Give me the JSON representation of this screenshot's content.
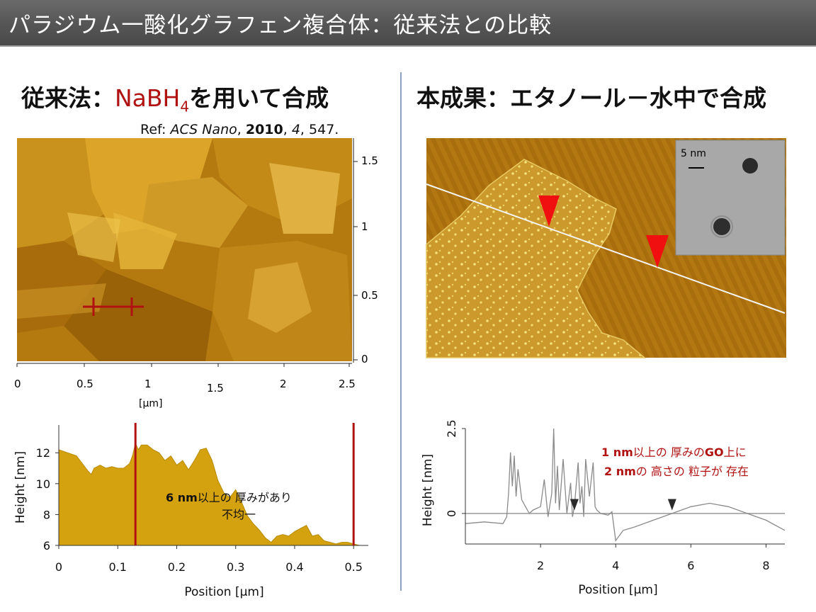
{
  "title": "パラジウム一酸化グラフェン複合体：従来法との比較",
  "left": {
    "heading_prefix": "従来法：",
    "heading_reagent_main": "NaBH",
    "heading_reagent_sub": "4",
    "heading_suffix": "を用いて合成",
    "ref": {
      "prefix": "Ref: ",
      "journal": "ACS Nano",
      "year": "2010",
      "volume": "4",
      "pages": "547."
    },
    "afm": {
      "x_ticks": [
        "0",
        "0.5",
        "1",
        "1.5",
        "2",
        "2.5"
      ],
      "x_unit": "[μm]",
      "y_ticks": [
        "0",
        "0.5",
        "1",
        "1.5"
      ]
    },
    "chart_data": {
      "type": "area",
      "xlabel": "Position [μm]",
      "ylabel": "Height [nm]",
      "xlim": [
        0,
        0.525
      ],
      "ylim": [
        6,
        13.8
      ],
      "x_ticks": [
        "0",
        "0.1",
        "0.2",
        "0.3",
        "0.4",
        "0.5"
      ],
      "y_ticks": [
        "6",
        "8",
        "10",
        "12"
      ],
      "x": [
        0,
        0.015,
        0.03,
        0.04,
        0.05,
        0.055,
        0.06,
        0.07,
        0.08,
        0.09,
        0.1,
        0.11,
        0.12,
        0.125,
        0.13,
        0.135,
        0.14,
        0.15,
        0.16,
        0.17,
        0.18,
        0.19,
        0.2,
        0.21,
        0.215,
        0.22,
        0.23,
        0.24,
        0.25,
        0.26,
        0.27,
        0.28,
        0.29,
        0.3,
        0.31,
        0.32,
        0.33,
        0.34,
        0.35,
        0.36,
        0.37,
        0.38,
        0.39,
        0.4,
        0.41,
        0.42,
        0.43,
        0.44,
        0.45,
        0.46,
        0.47,
        0.48,
        0.49,
        0.5,
        0.51,
        0.52
      ],
      "values": [
        12.2,
        12.0,
        11.8,
        11.3,
        10.8,
        10.6,
        11.0,
        11.2,
        11.0,
        11.1,
        11.0,
        11.0,
        11.3,
        11.8,
        12.6,
        12.2,
        12.5,
        12.5,
        12.2,
        12.0,
        11.5,
        11.8,
        11.2,
        11.5,
        11.2,
        10.9,
        11.5,
        12.2,
        12.3,
        11.5,
        10.2,
        9.4,
        9.1,
        9.6,
        8.8,
        7.9,
        7.4,
        7.0,
        6.5,
        6.2,
        6.6,
        6.7,
        6.6,
        6.9,
        7.1,
        7.3,
        6.6,
        6.7,
        6.3,
        6.2,
        6.1,
        6.2,
        6.2,
        6.1,
        6.0,
        6.0
      ],
      "markers_x": [
        0.13,
        0.5
      ],
      "annotation_bold": "6 nm",
      "annotation_line1": "以上の 厚みがあり",
      "annotation_line2": "不均一",
      "fill_color": "#d4a20e",
      "marker_color": "#b01212"
    }
  },
  "right": {
    "heading": "本成果：エタノール－水中で合成",
    "inset_scale": "5 nm",
    "chart_data": {
      "type": "line",
      "xlabel": "Position [μm]",
      "ylabel": "Height [nm]",
      "xlim": [
        0,
        8.5
      ],
      "ylim": [
        -0.9,
        2.5
      ],
      "x_ticks": [
        "2",
        "4",
        "6",
        "8"
      ],
      "y_ticks": [
        "0",
        "2.5"
      ],
      "x": [
        0,
        0.5,
        1.0,
        1.1,
        1.15,
        1.2,
        1.25,
        1.3,
        1.35,
        1.4,
        1.5,
        1.6,
        1.7,
        1.8,
        2.0,
        2.1,
        2.2,
        2.3,
        2.35,
        2.4,
        2.45,
        2.5,
        2.6,
        2.7,
        2.8,
        2.85,
        2.9,
        3.0,
        3.05,
        3.1,
        3.15,
        3.2,
        3.3,
        3.4,
        3.45,
        3.5,
        3.6,
        3.8,
        3.9,
        4.0,
        4.2,
        4.5,
        5.0,
        5.5,
        6.0,
        6.5,
        7.0,
        7.5,
        8.0,
        8.5
      ],
      "values": [
        -0.3,
        -0.25,
        -0.3,
        -0.1,
        0.6,
        1.8,
        0.8,
        1.7,
        0.5,
        1.3,
        0.4,
        0.2,
        0.0,
        0.1,
        0.2,
        1.0,
        -0.1,
        0.6,
        2.5,
        0.3,
        1.4,
        0.1,
        1.6,
        0.0,
        0.9,
        -0.1,
        0.2,
        1.5,
        0.3,
        0.8,
        -0.1,
        1.6,
        0.5,
        1.5,
        0.2,
        0.1,
        0.0,
        -0.05,
        0.05,
        -0.8,
        -0.5,
        -0.4,
        -0.2,
        0.0,
        0.2,
        0.3,
        0.2,
        0.0,
        -0.2,
        -0.5
      ],
      "markers_x": [
        2.9,
        5.5
      ],
      "annotation_line1_bold": "1 nm",
      "annotation_line1_rest": "以上の 厚みの",
      "annotation_line1_bold2": "GO",
      "annotation_line1_end": "上に",
      "annotation_line2_bold": "2 nm",
      "annotation_line2_rest": "の 高さの 粒子が 存在",
      "line_color": "#8a8a8a",
      "annotation_color": "#b01212"
    }
  }
}
